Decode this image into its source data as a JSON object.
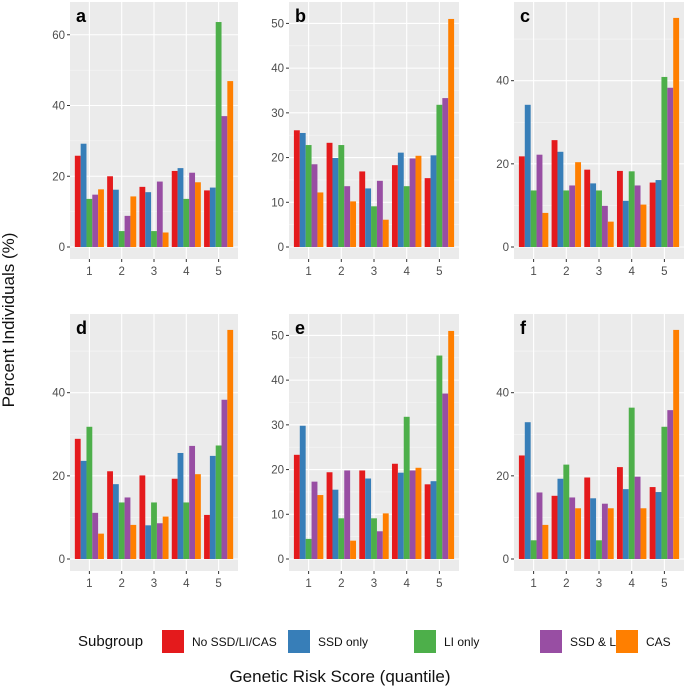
{
  "y_axis_label": "Percent Individuals (%)",
  "x_axis_label": "Genetic Risk Score (quantile)",
  "legend": {
    "title": "Subgroup",
    "items": [
      {
        "label": "No SSD/LI/CAS",
        "color": "#e41a1c"
      },
      {
        "label": "SSD only",
        "color": "#377eb8"
      },
      {
        "label": "LI only",
        "color": "#4daf4a"
      },
      {
        "label": "SSD & LI",
        "color": "#984ea3"
      },
      {
        "label": "CAS",
        "color": "#ff7f00"
      }
    ]
  },
  "chart_data": [
    {
      "type": "bar",
      "panel": "a",
      "categories": [
        "1",
        "2",
        "3",
        "4",
        "5"
      ],
      "ylim": [
        0,
        67
      ],
      "yticks": [
        0,
        20,
        40,
        60
      ],
      "series": [
        {
          "name": "No SSD/LI/CAS",
          "values": [
            25.8,
            20,
            17,
            21.5,
            16
          ]
        },
        {
          "name": "SSD only",
          "values": [
            29.2,
            16.2,
            15.5,
            22.3,
            16.8
          ]
        },
        {
          "name": "LI only",
          "values": [
            13.6,
            4.5,
            4.5,
            13.6,
            63.6
          ]
        },
        {
          "name": "SSD & LI",
          "values": [
            14.8,
            8.8,
            18.5,
            21,
            37
          ]
        },
        {
          "name": "CAS",
          "values": [
            16.3,
            14.3,
            4.1,
            18.3,
            46.9
          ]
        }
      ]
    },
    {
      "type": "bar",
      "panel": "b",
      "categories": [
        "1",
        "2",
        "3",
        "4",
        "5"
      ],
      "ylim": [
        0,
        53
      ],
      "yticks": [
        0,
        10,
        20,
        30,
        40,
        50
      ],
      "series": [
        {
          "name": "No SSD/LI/CAS",
          "values": [
            26.1,
            23.3,
            16.9,
            18.3,
            15.4
          ]
        },
        {
          "name": "SSD only",
          "values": [
            25.5,
            19.9,
            13.1,
            21.1,
            20.5
          ]
        },
        {
          "name": "LI only",
          "values": [
            22.8,
            22.8,
            9.1,
            13.6,
            31.8
          ]
        },
        {
          "name": "SSD & LI",
          "values": [
            18.5,
            13.6,
            14.8,
            19.8,
            33.3
          ]
        },
        {
          "name": "CAS",
          "values": [
            12.2,
            10.2,
            6.1,
            20.4,
            51
          ]
        }
      ]
    },
    {
      "type": "bar",
      "panel": "c",
      "categories": [
        "1",
        "2",
        "3",
        "4",
        "5"
      ],
      "ylim": [
        0,
        57
      ],
      "yticks": [
        0,
        20,
        40
      ],
      "series": [
        {
          "name": "No SSD/LI/CAS",
          "values": [
            21.8,
            25.7,
            18.6,
            18.3,
            15.5
          ]
        },
        {
          "name": "SSD only",
          "values": [
            34.2,
            22.9,
            15.3,
            11.1,
            16.1
          ]
        },
        {
          "name": "LI only",
          "values": [
            13.6,
            13.6,
            13.6,
            18.2,
            40.9
          ]
        },
        {
          "name": "SSD & LI",
          "values": [
            22.2,
            14.8,
            9.9,
            14.8,
            38.3
          ]
        },
        {
          "name": "CAS",
          "values": [
            8.2,
            20.4,
            6.1,
            10.2,
            55.1
          ]
        }
      ]
    },
    {
      "type": "bar",
      "panel": "d",
      "categories": [
        "1",
        "2",
        "3",
        "4",
        "5"
      ],
      "ylim": [
        0,
        57
      ],
      "yticks": [
        0,
        20,
        40
      ],
      "series": [
        {
          "name": "No SSD/LI/CAS",
          "values": [
            28.9,
            21.1,
            20.1,
            19.3,
            10.6
          ]
        },
        {
          "name": "SSD only",
          "values": [
            23.6,
            18,
            8.1,
            25.5,
            24.8
          ]
        },
        {
          "name": "LI only",
          "values": [
            31.8,
            13.6,
            13.6,
            13.6,
            27.3
          ]
        },
        {
          "name": "SSD & LI",
          "values": [
            11.1,
            14.8,
            8.6,
            27.2,
            38.3
          ]
        },
        {
          "name": "CAS",
          "values": [
            6.1,
            8.2,
            10.2,
            20.4,
            55.1
          ]
        }
      ]
    },
    {
      "type": "bar",
      "panel": "e",
      "categories": [
        "1",
        "2",
        "3",
        "4",
        "5"
      ],
      "ylim": [
        0,
        53
      ],
      "yticks": [
        0,
        10,
        20,
        30,
        40,
        50
      ],
      "series": [
        {
          "name": "No SSD/LI/CAS",
          "values": [
            23.3,
            19.4,
            19.8,
            21.3,
            16.7
          ]
        },
        {
          "name": "SSD only",
          "values": [
            29.8,
            15.5,
            18,
            19.3,
            17.4
          ]
        },
        {
          "name": "LI only",
          "values": [
            4.5,
            9.1,
            9.1,
            31.8,
            45.5
          ]
        },
        {
          "name": "SSD & LI",
          "values": [
            17.3,
            19.8,
            6.2,
            19.8,
            37
          ]
        },
        {
          "name": "CAS",
          "values": [
            14.3,
            4.1,
            10.2,
            20.4,
            51
          ]
        }
      ]
    },
    {
      "type": "bar",
      "panel": "f",
      "categories": [
        "1",
        "2",
        "3",
        "4",
        "5"
      ],
      "ylim": [
        0,
        57
      ],
      "yticks": [
        0,
        20,
        40
      ],
      "series": [
        {
          "name": "No SSD/LI/CAS",
          "values": [
            24.9,
            15.2,
            19.6,
            22.1,
            17.3
          ]
        },
        {
          "name": "SSD only",
          "values": [
            32.9,
            19.3,
            14.6,
            16.8,
            16.1
          ]
        },
        {
          "name": "LI only",
          "values": [
            4.5,
            22.7,
            4.5,
            36.4,
            31.8
          ]
        },
        {
          "name": "SSD & LI",
          "values": [
            16,
            14.8,
            13.3,
            19.8,
            35.8
          ]
        },
        {
          "name": "CAS",
          "values": [
            8.2,
            12.2,
            12.2,
            12.2,
            55.1
          ]
        }
      ]
    }
  ]
}
